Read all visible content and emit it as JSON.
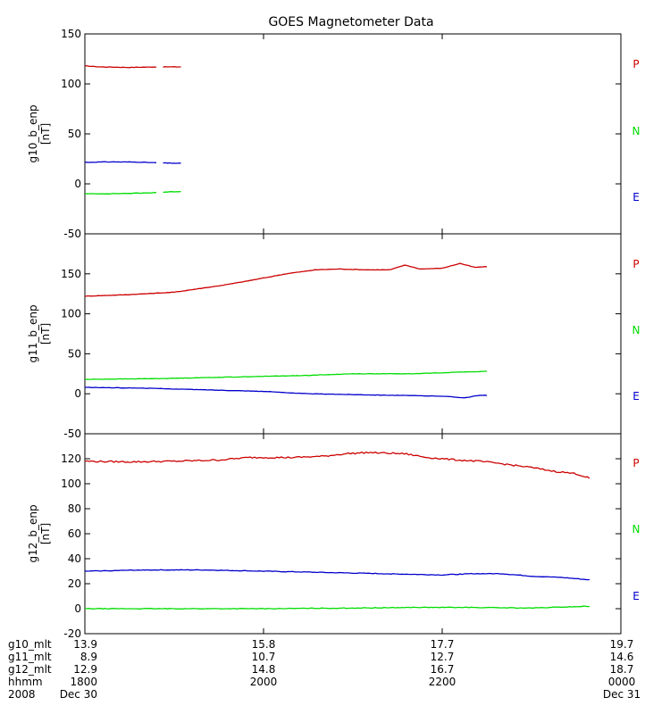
{
  "chart_data": {
    "type": "line",
    "title": "GOES Magnetometer Data",
    "colors": {
      "P": "#cc0000",
      "N": "#00dd00",
      "E": "#0000cc"
    },
    "panels": [
      {
        "ylabel": "g10_b_enp",
        "units": "[nT]",
        "ylim": [
          -50,
          150
        ],
        "yticks": [
          -50,
          0,
          50,
          100,
          150
        ],
        "legend": [
          "P",
          "N",
          "E"
        ],
        "series": [
          {
            "component": "P",
            "points": [
              [
                0,
                118
              ],
              [
                10,
                117
              ],
              [
                30,
                116.5
              ],
              [
                50,
                117
              ],
              [
                65,
                117
              ]
            ],
            "gaps": [
              [
                48,
                52
              ]
            ]
          },
          {
            "component": "N",
            "points": [
              [
                0,
                -10
              ],
              [
                20,
                -9.8
              ],
              [
                40,
                -9.2
              ],
              [
                65,
                -7.5
              ]
            ],
            "gaps": [
              [
                48,
                52
              ]
            ]
          },
          {
            "component": "E",
            "points": [
              [
                0,
                21.5
              ],
              [
                15,
                22
              ],
              [
                35,
                21.8
              ],
              [
                50,
                21
              ],
              [
                65,
                20.5
              ]
            ],
            "gaps": [
              [
                48,
                52
              ]
            ]
          }
        ]
      },
      {
        "ylabel": "g11_b_enp",
        "units": "[nT]",
        "ylim": [
          -50,
          200
        ],
        "yticks": [
          -50,
          0,
          50,
          100,
          150,
          200
        ],
        "legend": [
          "P",
          "N",
          "E"
        ],
        "series": [
          {
            "component": "P",
            "points": [
              [
                0,
                122
              ],
              [
                30,
                124
              ],
              [
                60,
                127
              ],
              [
                75,
                131
              ],
              [
                90,
                135
              ],
              [
                100,
                138
              ],
              [
                115,
                143
              ],
              [
                135,
                150
              ],
              [
                155,
                155
              ],
              [
                170,
                156
              ],
              [
                190,
                155
              ],
              [
                205,
                155
              ],
              [
                215,
                161
              ],
              [
                225,
                156
              ],
              [
                240,
                157
              ],
              [
                252,
                163
              ],
              [
                262,
                158
              ],
              [
                270,
                159
              ]
            ]
          },
          {
            "component": "N",
            "points": [
              [
                0,
                18
              ],
              [
                50,
                19
              ],
              [
                100,
                21
              ],
              [
                150,
                23
              ],
              [
                180,
                25
              ],
              [
                220,
                25
              ],
              [
                250,
                27
              ],
              [
                270,
                28
              ]
            ]
          },
          {
            "component": "E",
            "points": [
              [
                0,
                8
              ],
              [
                40,
                7
              ],
              [
                80,
                5
              ],
              [
                120,
                3
              ],
              [
                150,
                0
              ],
              [
                180,
                -1
              ],
              [
                210,
                -2
              ],
              [
                240,
                -3
              ],
              [
                255,
                -5
              ],
              [
                265,
                -2
              ],
              [
                270,
                -2
              ]
            ]
          }
        ]
      },
      {
        "ylabel": "g12_b_enp",
        "units": "[nT]",
        "ylim": [
          -20,
          140
        ],
        "yticks": [
          -20,
          0,
          20,
          40,
          60,
          80,
          100,
          120,
          140
        ],
        "legend": [
          "P",
          "N",
          "E"
        ],
        "series": [
          {
            "component": "P",
            "points": [
              [
                0,
                118
              ],
              [
                30,
                117.5
              ],
              [
                60,
                118
              ],
              [
                90,
                119
              ],
              [
                110,
                121
              ],
              [
                140,
                121
              ],
              [
                160,
                122
              ],
              [
                175,
                124
              ],
              [
                190,
                125
              ],
              [
                215,
                124
              ],
              [
                230,
                121
              ],
              [
                250,
                119
              ],
              [
                265,
                118
              ],
              [
                280,
                116
              ],
              [
                300,
                113
              ],
              [
                315,
                110
              ],
              [
                330,
                108
              ],
              [
                340,
                104
              ]
            ]
          },
          {
            "component": "N",
            "points": [
              [
                0,
                0
              ],
              [
                60,
                0
              ],
              [
                120,
                0
              ],
              [
                180,
                0.5
              ],
              [
                220,
                1
              ],
              [
                260,
                1
              ],
              [
                300,
                0.5
              ],
              [
                340,
                2
              ]
            ]
          },
          {
            "component": "E",
            "points": [
              [
                0,
                30
              ],
              [
                40,
                31
              ],
              [
                80,
                31
              ],
              [
                120,
                30
              ],
              [
                160,
                29
              ],
              [
                200,
                28
              ],
              [
                240,
                27
              ],
              [
                260,
                28
              ],
              [
                280,
                28
              ],
              [
                300,
                26
              ],
              [
                320,
                25
              ],
              [
                340,
                23
              ]
            ]
          }
        ]
      }
    ],
    "x": {
      "range": [
        0,
        360
      ],
      "ticks": [
        0,
        120,
        240,
        360
      ],
      "footer": [
        {
          "label": "g10_mlt",
          "values": [
            "13.9",
            "15.8",
            "17.7",
            "19.7"
          ]
        },
        {
          "label": "g11_mlt",
          "values": [
            "8.9",
            "10.7",
            "12.7",
            "14.6"
          ]
        },
        {
          "label": "g12_mlt",
          "values": [
            "12.9",
            "14.8",
            "16.7",
            "18.7"
          ]
        },
        {
          "label": "hhmm",
          "values": [
            "1800",
            "2000",
            "2200",
            "0000"
          ]
        },
        {
          "label": "2008",
          "values": [
            "Dec 30",
            "",
            "",
            "Dec 31"
          ]
        }
      ]
    }
  }
}
